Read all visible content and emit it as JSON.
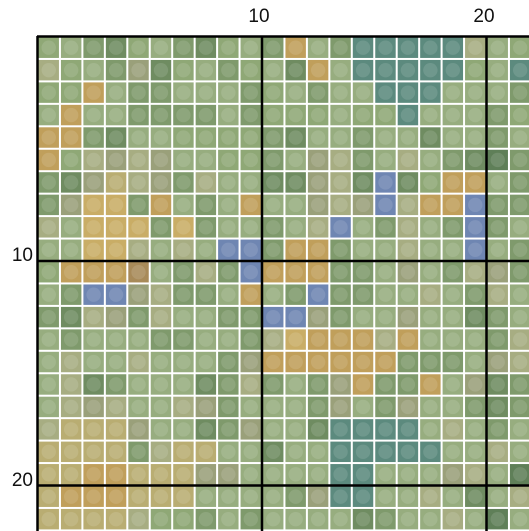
{
  "title": "",
  "axes": {
    "x_labels": [
      "10",
      "20"
    ],
    "y_labels": [
      "10",
      "20"
    ]
  },
  "grid": {
    "columns": 22,
    "rows": 22,
    "major_every": 10,
    "cell_border_color": "#ffffff",
    "major_line_color": "#000000"
  },
  "palette": {
    "a": "#8fa876",
    "b": "#97ad7f",
    "c": "#7f9a6c",
    "d": "#6f8c61",
    "e": "#5f7f58",
    "f": "#a7ad82",
    "g": "#9aa07a",
    "h": "#b9ad72",
    "i": "#c9ad66",
    "j": "#c09f5b",
    "k": "#a88a59",
    "l": "#8c9aa0",
    "m": "#6f86b2",
    "n": "#5c8a7e",
    "o": "#7d8f73"
  },
  "cells": [
    "abcdabcdabcjbcnnnnnfba",
    "fabcgdabcabdjbnnnnnabn",
    "aajbccbbbcabcbbnnnbbbc",
    "bjbbccccbcaaabaanbbbca",
    "jjcdbbaaaacdbbcbbdbbcb",
    "jafgfgbbaacbgfcbfbcdec",
    "cdghfgcfbbddgfdmdajjbc",
    "cgiicjbcbjbbgfgmfjjmcc",
    "fbiiicicbbcbfmbcfbcmcb",
    "bbiifbfbmmcjjcbbfbbmbc",
    "ajjjkbcfcmjjjccbgbcfgc",
    "bcmmgfccbjbcmccbbfbcfb",
    "cdfgcfbbccmmgcbbgbbdcb",
    "bcbbbccbbcfijjjfjbbbcf",
    "bfbbfbbbcgjjjjjjcccbgf",
    "bfdcbbbdcfcbcgjccjbgdc",
    "bfgfbbfgcbbbcgbcgbbcdc",
    "fhhhgbbdcgbbdnnnnbfbcb",
    "hhhhcfhhbbdbbnnnnnbbfb",
    "hhjjhhhggbbbbnnbbbgfbe",
    "hjjjhhhbbbbcgnnbbfbdbf",
    "hhhhfaacbcbbbbdcbbfbeb"
  ]
}
